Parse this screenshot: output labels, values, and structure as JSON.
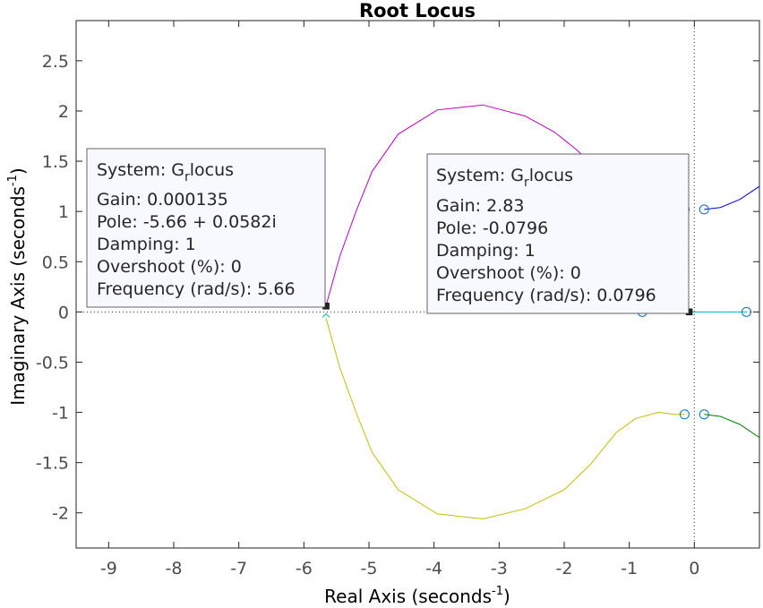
{
  "chart_data": {
    "type": "line",
    "title": "Root Locus",
    "xlabel": "Real Axis (seconds",
    "xlabel_sup": "-1",
    "xlabel_end": ")",
    "ylabel": "Imaginary Axis (seconds",
    "ylabel_sup": "-1",
    "ylabel_end": ")",
    "xlim": [
      -9.5,
      1.0
    ],
    "ylim": [
      -2.35,
      2.9
    ],
    "xticks": [
      -9,
      -8,
      -7,
      -6,
      -5,
      -4,
      -3,
      -2,
      -1,
      0
    ],
    "yticks": [
      -2,
      -1.5,
      -1,
      -0.5,
      0,
      0.5,
      1,
      1.5,
      2,
      2.5
    ],
    "colors": {
      "upper_branch": "#bf00bf",
      "lower_branch": "#bfbf00",
      "real_left": "#ff0000",
      "real_right": "#00bfbf",
      "upper_right": "#0000ff",
      "lower_right": "#007f00",
      "zero": "#0072bd"
    },
    "series": [
      {
        "values": [
          [
            -5.66,
            0.06
          ],
          [
            -5.45,
            0.55
          ],
          [
            -5.2,
            1.0
          ],
          [
            -4.95,
            1.4
          ],
          [
            -4.55,
            1.77
          ],
          [
            -3.95,
            2.01
          ],
          [
            -3.25,
            2.06
          ],
          [
            -2.6,
            1.95
          ],
          [
            -2.15,
            1.79
          ],
          [
            -1.82,
            1.62
          ],
          [
            -1.62,
            1.5
          ]
        ]
      },
      {
        "values": [
          [
            -5.66,
            -0.06
          ],
          [
            -5.45,
            -0.55
          ],
          [
            -5.2,
            -1.0
          ],
          [
            -4.95,
            -1.4
          ],
          [
            -4.55,
            -1.77
          ],
          [
            -3.95,
            -2.01
          ],
          [
            -3.25,
            -2.06
          ],
          [
            -2.6,
            -1.96
          ],
          [
            -2.0,
            -1.77
          ],
          [
            -1.6,
            -1.52
          ],
          [
            -1.2,
            -1.2
          ],
          [
            -0.9,
            -1.06
          ],
          [
            -0.55,
            -1.0
          ],
          [
            -0.3,
            -1.02
          ],
          [
            -0.15,
            -1.02
          ]
        ]
      },
      {
        "values": [
          [
            -0.8,
            0
          ],
          [
            -0.08,
            0
          ]
        ]
      },
      {
        "values": [
          [
            -0.08,
            0
          ],
          [
            0.8,
            0
          ]
        ]
      },
      {
        "values": [
          [
            0.15,
            1.02
          ],
          [
            0.4,
            1.04
          ],
          [
            0.7,
            1.12
          ],
          [
            1.0,
            1.25
          ]
        ]
      },
      {
        "values": [
          [
            0.15,
            -1.02
          ],
          [
            0.4,
            -1.04
          ],
          [
            0.7,
            -1.12
          ],
          [
            1.0,
            -1.25
          ]
        ]
      }
    ],
    "zeros": [
      [
        -0.15,
        1.02
      ],
      [
        0.15,
        1.02
      ],
      [
        -0.8,
        0
      ],
      [
        0.8,
        0
      ],
      [
        -0.15,
        -1.02
      ],
      [
        0.15,
        -1.02
      ]
    ],
    "markers": [
      [
        -5.66,
        0.0582
      ],
      [
        -0.0796,
        0
      ]
    ],
    "datatips": [
      {
        "system": "System: G",
        "system_sub": "r",
        "system_end": "locus",
        "gain": "Gain: 0.000135",
        "pole": "Pole: -5.66 + 0.0582i",
        "damping": "Damping: 1",
        "overshoot": "Overshoot (%): 0",
        "frequency": "Frequency (rad/s): 5.66"
      },
      {
        "system": "System: G",
        "system_sub": "r",
        "system_end": "locus",
        "gain": "Gain: 2.83",
        "pole": "Pole: -0.0796",
        "damping": "Damping: 1",
        "overshoot": "Overshoot (%): 0",
        "frequency": "Frequency (rad/s): 0.0796"
      }
    ],
    "grid": false
  }
}
